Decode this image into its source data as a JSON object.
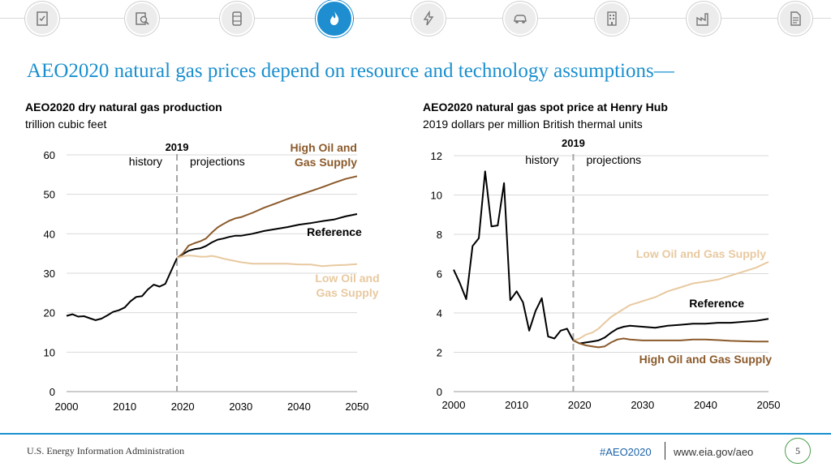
{
  "nav": {
    "icons": [
      "document-check-icon",
      "magnifier-chart-icon",
      "oil-barrel-icon",
      "natural-gas-flame-icon",
      "electricity-bolt-icon",
      "car-icon",
      "building-icon",
      "factory-icon",
      "report-icon"
    ],
    "active_index": 3
  },
  "slide": {
    "title": "AEO2020 natural gas prices depend on resource and technology assumptions—"
  },
  "colors": {
    "title": "#1a8fcf",
    "high": "#8b5a2b",
    "reference": "#000000",
    "low": "#e8c9a0",
    "divider": "#a6a6a6",
    "footer_rule": "#1a8fcf"
  },
  "chart_data": [
    {
      "type": "line",
      "title": "AEO2020 dry natural gas production",
      "subtitle": "trillion cubic feet",
      "xlim": [
        2000,
        2050
      ],
      "ylim": [
        0,
        60
      ],
      "xticks": [
        2000,
        2010,
        2020,
        2030,
        2040,
        2050
      ],
      "yticks": [
        0,
        10,
        20,
        30,
        40,
        50,
        60
      ],
      "divider": {
        "year": 2019,
        "label": "2019",
        "left": "history",
        "right": "projections"
      },
      "series": [
        {
          "name": "History",
          "key": "reference",
          "x": [
            2000,
            2001,
            2002,
            2003,
            2004,
            2005,
            2006,
            2007,
            2008,
            2009,
            2010,
            2011,
            2012,
            2013,
            2014,
            2015,
            2016,
            2017,
            2018,
            2019
          ],
          "y": [
            19.2,
            19.6,
            19.0,
            19.1,
            18.6,
            18.1,
            18.5,
            19.3,
            20.2,
            20.6,
            21.3,
            22.9,
            24.0,
            24.2,
            25.9,
            27.1,
            26.6,
            27.3,
            30.6,
            33.8
          ]
        },
        {
          "name": "Reference",
          "key": "reference",
          "label": "Reference",
          "x": [
            2019,
            2020,
            2021,
            2022,
            2023,
            2024,
            2025,
            2026,
            2027,
            2028,
            2029,
            2030,
            2032,
            2034,
            2036,
            2038,
            2040,
            2042,
            2044,
            2046,
            2048,
            2050
          ],
          "y": [
            33.8,
            34.8,
            35.7,
            36.1,
            36.3,
            36.9,
            37.8,
            38.5,
            38.8,
            39.2,
            39.5,
            39.5,
            40.0,
            40.7,
            41.2,
            41.7,
            42.3,
            42.7,
            43.2,
            43.6,
            44.4,
            45.0
          ]
        },
        {
          "name": "High Oil and Gas Supply",
          "key": "high",
          "label": "High Oil and Gas Supply",
          "x": [
            2019,
            2020,
            2021,
            2022,
            2023,
            2024,
            2025,
            2026,
            2027,
            2028,
            2029,
            2030,
            2032,
            2034,
            2036,
            2038,
            2040,
            2042,
            2044,
            2046,
            2048,
            2050
          ],
          "y": [
            33.8,
            35.0,
            37.0,
            37.6,
            38.1,
            38.8,
            40.3,
            41.6,
            42.5,
            43.3,
            43.9,
            44.2,
            45.3,
            46.6,
            47.7,
            48.8,
            49.8,
            50.8,
            51.8,
            52.9,
            53.9,
            54.6
          ]
        },
        {
          "name": "Low Oil and Gas Supply",
          "key": "low",
          "label": "Low Oil and Gas Supply",
          "x": [
            2019,
            2020,
            2021,
            2022,
            2023,
            2024,
            2025,
            2026,
            2027,
            2028,
            2030,
            2032,
            2034,
            2036,
            2038,
            2040,
            2042,
            2044,
            2046,
            2048,
            2050
          ],
          "y": [
            33.8,
            34.3,
            34.5,
            34.4,
            34.2,
            34.2,
            34.4,
            34.1,
            33.7,
            33.4,
            32.8,
            32.4,
            32.4,
            32.4,
            32.4,
            32.2,
            32.2,
            31.8,
            32.0,
            32.1,
            32.3
          ]
        }
      ]
    },
    {
      "type": "line",
      "title": "AEO2020 natural gas spot price at Henry Hub",
      "subtitle": "2019 dollars per million British thermal units",
      "xlim": [
        2000,
        2050
      ],
      "ylim": [
        0,
        12
      ],
      "xticks": [
        2000,
        2010,
        2020,
        2030,
        2040,
        2050
      ],
      "yticks": [
        0,
        2,
        4,
        6,
        8,
        10,
        12
      ],
      "divider": {
        "year": 2019,
        "label": "2019",
        "left": "history",
        "right": "projections"
      },
      "series": [
        {
          "name": "History",
          "key": "reference",
          "x": [
            2000,
            2001,
            2002,
            2003,
            2004,
            2005,
            2006,
            2007,
            2008,
            2009,
            2010,
            2011,
            2012,
            2013,
            2014,
            2015,
            2016,
            2017,
            2018,
            2019
          ],
          "y": [
            6.2,
            5.5,
            4.7,
            7.4,
            7.8,
            11.2,
            8.4,
            8.45,
            10.6,
            4.65,
            5.1,
            4.55,
            3.1,
            4.1,
            4.75,
            2.8,
            2.7,
            3.1,
            3.2,
            2.6
          ]
        },
        {
          "name": "Reference",
          "key": "reference",
          "label": "Reference",
          "x": [
            2019,
            2020,
            2021,
            2022,
            2023,
            2024,
            2025,
            2026,
            2027,
            2028,
            2030,
            2032,
            2034,
            2036,
            2038,
            2040,
            2042,
            2044,
            2046,
            2048,
            2050
          ],
          "y": [
            2.6,
            2.45,
            2.5,
            2.55,
            2.6,
            2.75,
            3.0,
            3.2,
            3.3,
            3.35,
            3.3,
            3.25,
            3.35,
            3.4,
            3.45,
            3.45,
            3.5,
            3.5,
            3.55,
            3.6,
            3.7
          ]
        },
        {
          "name": "Low Oil and Gas Supply",
          "key": "low",
          "label": "Low Oil and Gas Supply",
          "x": [
            2019,
            2020,
            2021,
            2022,
            2023,
            2024,
            2025,
            2026,
            2027,
            2028,
            2029,
            2030,
            2032,
            2034,
            2036,
            2038,
            2040,
            2042,
            2044,
            2046,
            2048,
            2050
          ],
          "y": [
            2.6,
            2.7,
            2.9,
            3.0,
            3.2,
            3.5,
            3.8,
            4.0,
            4.2,
            4.4,
            4.5,
            4.6,
            4.8,
            5.1,
            5.3,
            5.5,
            5.6,
            5.7,
            5.9,
            6.1,
            6.3,
            6.6
          ]
        },
        {
          "name": "High Oil and Gas Supply",
          "key": "high",
          "label": "High Oil and Gas Supply",
          "x": [
            2019,
            2020,
            2021,
            2022,
            2023,
            2024,
            2025,
            2026,
            2027,
            2028,
            2030,
            2032,
            2034,
            2036,
            2038,
            2040,
            2042,
            2044,
            2046,
            2048,
            2050
          ],
          "y": [
            2.6,
            2.45,
            2.35,
            2.3,
            2.25,
            2.3,
            2.5,
            2.65,
            2.7,
            2.65,
            2.6,
            2.6,
            2.6,
            2.6,
            2.65,
            2.65,
            2.62,
            2.58,
            2.56,
            2.55,
            2.55
          ]
        }
      ]
    }
  ],
  "footer": {
    "agency": "U.S. Energy Information Administration",
    "hashtag": "#AEO2020",
    "website": "www.eia.gov/aeo",
    "page_number": "5"
  }
}
